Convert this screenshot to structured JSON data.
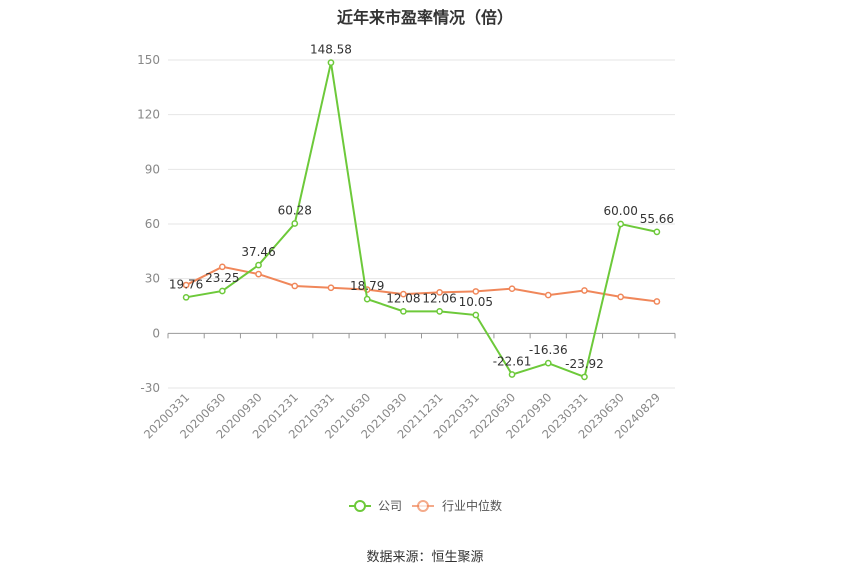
{
  "chart_data": {
    "type": "line",
    "title": "近年来市盈率情况（倍）",
    "source": "数据来源：恒生聚源",
    "categories": [
      "20200331",
      "20200630",
      "20200930",
      "20201231",
      "20210331",
      "20210630",
      "20210930",
      "20211231",
      "20220331",
      "20220630",
      "20220930",
      "20230331",
      "20230630",
      "20240829"
    ],
    "series": [
      {
        "name": "公司",
        "color": "#6dc93a",
        "values": [
          19.76,
          23.25,
          37.46,
          60.28,
          148.58,
          18.79,
          12.08,
          12.06,
          10.05,
          -22.61,
          -16.36,
          -23.92,
          60.0,
          55.66
        ],
        "labels": [
          "19.76",
          "23.25",
          "37.46",
          "60.28",
          "148.58",
          "18.79",
          "12.08",
          "12.06",
          "10.05",
          "-22.61",
          "-16.36",
          "-23.92",
          "60.00",
          "55.66"
        ]
      },
      {
        "name": "行业中位数",
        "color": "#f0875a",
        "values": [
          26.5,
          36.5,
          32.5,
          26.0,
          25.0,
          24.0,
          21.5,
          22.5,
          23.0,
          24.5,
          21.0,
          23.5,
          20.0,
          17.5
        ]
      }
    ],
    "ylim": [
      -30,
      150
    ],
    "yticks": [
      -30,
      0,
      30,
      60,
      90,
      120,
      150
    ],
    "grid": true,
    "legend": "bottom"
  }
}
